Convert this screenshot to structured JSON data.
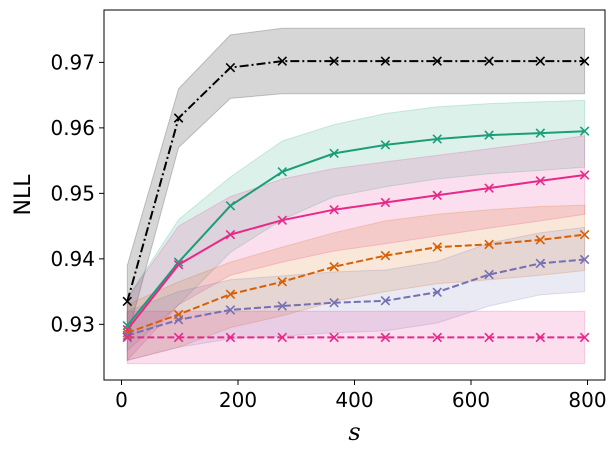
{
  "chart_data": {
    "type": "line",
    "title": "",
    "xlabel": "s",
    "ylabel": "NLL",
    "xlim": [
      -30,
      830
    ],
    "ylim": [
      0.9215,
      0.978
    ],
    "xticks": [
      0,
      200,
      400,
      600,
      800
    ],
    "yticks": [
      0.93,
      0.94,
      0.95,
      0.96,
      0.97
    ],
    "xtick_labels": [
      "0",
      "200",
      "400",
      "600",
      "800"
    ],
    "ytick_labels": [
      "0.93",
      "0.94",
      "0.95",
      "0.96",
      "0.97"
    ],
    "x": [
      10,
      98,
      187,
      276,
      365,
      453,
      542,
      631,
      719,
      795
    ],
    "series": [
      {
        "name": "black",
        "color": "#000000",
        "dash": "dashdot",
        "values": [
          0.9335,
          0.9615,
          0.9692,
          0.9702,
          0.9702,
          0.9702,
          0.9702,
          0.9702,
          0.9702,
          0.9702
        ],
        "lower": [
          0.928,
          0.957,
          0.9645,
          0.9652,
          0.9652,
          0.9652,
          0.9652,
          0.9652,
          0.9652,
          0.9652
        ],
        "upper": [
          0.939,
          0.966,
          0.9742,
          0.9752,
          0.9752,
          0.9752,
          0.9752,
          0.9752,
          0.9752,
          0.9752
        ]
      },
      {
        "name": "green",
        "color": "#1b9e77",
        "dash": "solid",
        "values": [
          0.9298,
          0.9395,
          0.9481,
          0.9533,
          0.9561,
          0.9574,
          0.9583,
          0.9589,
          0.9592,
          0.9595
        ],
        "lower": [
          0.926,
          0.933,
          0.941,
          0.946,
          0.9495,
          0.951,
          0.9522,
          0.953,
          0.9535,
          0.954
        ],
        "upper": [
          0.934,
          0.946,
          0.9525,
          0.958,
          0.9605,
          0.9622,
          0.9632,
          0.9637,
          0.964,
          0.9642
        ]
      },
      {
        "name": "magenta",
        "color": "#e7298a",
        "dash": "solid",
        "values": [
          0.9292,
          0.9391,
          0.9437,
          0.9459,
          0.9475,
          0.9486,
          0.9497,
          0.9508,
          0.9519,
          0.9528
        ],
        "lower": [
          0.9245,
          0.933,
          0.9375,
          0.9395,
          0.9412,
          0.9423,
          0.9435,
          0.9447,
          0.9458,
          0.9468
        ],
        "upper": [
          0.934,
          0.945,
          0.9495,
          0.9522,
          0.9538,
          0.9548,
          0.9558,
          0.9568,
          0.9578,
          0.9588
        ]
      },
      {
        "name": "orange",
        "color": "#d95f02",
        "dash": "dashed",
        "values": [
          0.9287,
          0.9315,
          0.9346,
          0.9365,
          0.9388,
          0.9405,
          0.9418,
          0.9422,
          0.9429,
          0.9437
        ],
        "lower": [
          0.9245,
          0.9265,
          0.9295,
          0.9313,
          0.9335,
          0.935,
          0.9362,
          0.9368,
          0.9375,
          0.9382
        ],
        "upper": [
          0.933,
          0.9365,
          0.9395,
          0.9418,
          0.944,
          0.9458,
          0.9468,
          0.9475,
          0.948,
          0.9482
        ]
      },
      {
        "name": "purple",
        "color": "#7570b3",
        "dash": "dashed",
        "values": [
          0.9283,
          0.9307,
          0.9322,
          0.9328,
          0.9333,
          0.9336,
          0.9349,
          0.9376,
          0.9393,
          0.9399
        ],
        "lower": [
          0.9245,
          0.9265,
          0.9278,
          0.9282,
          0.9287,
          0.929,
          0.9302,
          0.9328,
          0.9345,
          0.935
        ],
        "upper": [
          0.932,
          0.935,
          0.9368,
          0.9374,
          0.938,
          0.9383,
          0.9396,
          0.9424,
          0.944,
          0.9448
        ]
      },
      {
        "name": "pink",
        "color": "#e7298a",
        "dash": "dashed",
        "values": [
          0.928,
          0.928,
          0.928,
          0.928,
          0.928,
          0.928,
          0.928,
          0.928,
          0.928,
          0.928
        ],
        "lower": [
          0.924,
          0.924,
          0.924,
          0.924,
          0.924,
          0.924,
          0.924,
          0.924,
          0.924,
          0.924
        ],
        "upper": [
          0.932,
          0.932,
          0.932,
          0.932,
          0.932,
          0.932,
          0.932,
          0.932,
          0.932,
          0.932
        ]
      }
    ]
  }
}
